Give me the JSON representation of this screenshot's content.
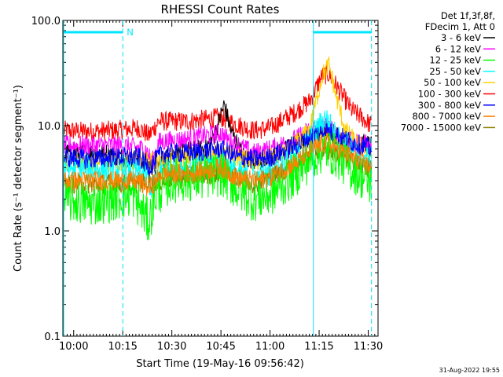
{
  "chart_data": {
    "type": "line",
    "title": "RHESSI Count Rates",
    "xlabel": "Start Time (19-May-16 09:56:42)",
    "ylabel": "Count Rate (s⁻¹ detector segment⁻¹)",
    "yscale": "log",
    "ylim": [
      0.1,
      100.0
    ],
    "xlim": [
      "09:56:42",
      "11:33:00"
    ],
    "grid": false,
    "y_ticks": [
      "0.1",
      "1.0",
      "10.0",
      "100.0"
    ],
    "x_ticks": [
      "10:00",
      "10:15",
      "10:30",
      "10:45",
      "11:00",
      "11:15",
      "11:30"
    ],
    "legend_header": [
      "Det 1f,3f,8f,",
      "FDecim 1, Att 0"
    ],
    "legend_position": "right",
    "footer": "31-Aug-2022 19:55",
    "annotation": "N",
    "night_intervals": [
      [
        "09:56:42",
        "10:15:00"
      ],
      [
        "11:13:00",
        "11:31:00"
      ]
    ],
    "saa_lines": [
      "10:15:00",
      "11:31:00"
    ],
    "series": [
      {
        "name": "3 - 6 keV",
        "color": "#000000",
        "points": [
          [
            "09:57",
            5.5
          ],
          [
            "10:10",
            5.5
          ],
          [
            "10:15",
            5.0
          ],
          [
            "10:20",
            4.8
          ],
          [
            "10:25",
            4.0
          ],
          [
            "10:30",
            5.5
          ],
          [
            "10:40",
            6.0
          ],
          [
            "10:43",
            8.0
          ],
          [
            "10:46",
            16.0
          ],
          [
            "10:48",
            9.0
          ],
          [
            "10:52",
            5.0
          ],
          [
            "10:58",
            4.5
          ],
          [
            "11:05",
            6.0
          ],
          [
            "11:10",
            7.5
          ],
          [
            "11:15",
            9.5
          ],
          [
            "11:18",
            9.0
          ],
          [
            "11:22",
            7.5
          ],
          [
            "11:26",
            7.0
          ],
          [
            "11:31",
            6.5
          ]
        ]
      },
      {
        "name": "6 - 12 keV",
        "color": "#ff00ff",
        "points": [
          [
            "09:57",
            6.5
          ],
          [
            "10:10",
            6.5
          ],
          [
            "10:15",
            6.5
          ],
          [
            "10:22",
            6.0
          ],
          [
            "10:24",
            4.5
          ],
          [
            "10:26",
            7.0
          ],
          [
            "10:35",
            7.5
          ],
          [
            "10:45",
            8.5
          ],
          [
            "10:48",
            7.0
          ],
          [
            "10:55",
            5.5
          ],
          [
            "11:00",
            6.0
          ],
          [
            "11:08",
            7.5
          ],
          [
            "11:13",
            9.5
          ],
          [
            "11:17",
            10.0
          ],
          [
            "11:20",
            8.5
          ],
          [
            "11:25",
            7.0
          ],
          [
            "11:31",
            6.5
          ]
        ]
      },
      {
        "name": "12 - 25 keV",
        "color": "#00ff00",
        "points": [
          [
            "09:57",
            2.0
          ],
          [
            "10:05",
            1.8
          ],
          [
            "10:12",
            2.0
          ],
          [
            "10:18",
            2.2
          ],
          [
            "10:23",
            1.2
          ],
          [
            "10:25",
            2.2
          ],
          [
            "10:30",
            3.0
          ],
          [
            "10:40",
            3.2
          ],
          [
            "10:45",
            3.5
          ],
          [
            "10:50",
            2.5
          ],
          [
            "10:55",
            2.0
          ],
          [
            "11:00",
            2.2
          ],
          [
            "11:08",
            3.5
          ],
          [
            "11:13",
            5.0
          ],
          [
            "11:17",
            6.0
          ],
          [
            "11:21",
            5.0
          ],
          [
            "11:25",
            3.8
          ],
          [
            "11:31",
            2.8
          ]
        ]
      },
      {
        "name": "25 - 50 keV",
        "color": "#00ffff",
        "points": [
          [
            "09:57",
            4.0
          ],
          [
            "10:10",
            3.8
          ],
          [
            "10:15",
            3.8
          ],
          [
            "10:22",
            3.5
          ],
          [
            "10:24",
            2.5
          ],
          [
            "10:27",
            4.0
          ],
          [
            "10:35",
            4.0
          ],
          [
            "10:45",
            4.5
          ],
          [
            "10:50",
            3.5
          ],
          [
            "10:55",
            3.2
          ],
          [
            "11:00",
            3.5
          ],
          [
            "11:08",
            5.0
          ],
          [
            "11:13",
            8.0
          ],
          [
            "11:17",
            12.0
          ],
          [
            "11:20",
            8.0
          ],
          [
            "11:25",
            6.0
          ],
          [
            "11:31",
            4.5
          ]
        ]
      },
      {
        "name": "50 - 100 keV",
        "color": "#ffd000",
        "points": [
          [
            "09:57",
            4.5
          ],
          [
            "10:10",
            4.5
          ],
          [
            "10:20",
            4.5
          ],
          [
            "10:35",
            5.0
          ],
          [
            "10:45",
            5.5
          ],
          [
            "10:55",
            4.5
          ],
          [
            "11:05",
            5.5
          ],
          [
            "11:12",
            9.0
          ],
          [
            "11:16",
            30.0
          ],
          [
            "11:18",
            38.0
          ],
          [
            "11:20",
            20.0
          ],
          [
            "11:23",
            9.0
          ],
          [
            "11:27",
            6.5
          ],
          [
            "11:31",
            5.5
          ]
        ]
      },
      {
        "name": "100 - 300 keV",
        "color": "#ff0000",
        "points": [
          [
            "09:57",
            9.0
          ],
          [
            "10:05",
            8.8
          ],
          [
            "10:12",
            9.0
          ],
          [
            "10:20",
            9.5
          ],
          [
            "10:23",
            8.0
          ],
          [
            "10:26",
            11.0
          ],
          [
            "10:35",
            11.0
          ],
          [
            "10:45",
            12.0
          ],
          [
            "10:49",
            10.5
          ],
          [
            "10:55",
            9.0
          ],
          [
            "11:00",
            9.5
          ],
          [
            "11:07",
            13.0
          ],
          [
            "11:12",
            17.0
          ],
          [
            "11:16",
            30.0
          ],
          [
            "11:18",
            31.0
          ],
          [
            "11:21",
            22.0
          ],
          [
            "11:25",
            14.0
          ],
          [
            "11:28",
            12.0
          ],
          [
            "11:31",
            10.0
          ]
        ]
      },
      {
        "name": "300 - 800 keV",
        "color": "#0000ff",
        "points": [
          [
            "09:57",
            5.0
          ],
          [
            "10:05",
            4.8
          ],
          [
            "10:12",
            5.0
          ],
          [
            "10:20",
            5.0
          ],
          [
            "10:23",
            4.0
          ],
          [
            "10:27",
            5.5
          ],
          [
            "10:35",
            5.5
          ],
          [
            "10:45",
            6.0
          ],
          [
            "10:50",
            5.0
          ],
          [
            "10:55",
            4.8
          ],
          [
            "11:00",
            5.0
          ],
          [
            "11:08",
            6.5
          ],
          [
            "11:13",
            8.0
          ],
          [
            "11:17",
            9.0
          ],
          [
            "11:21",
            8.0
          ],
          [
            "11:25",
            7.0
          ],
          [
            "11:31",
            6.0
          ]
        ]
      },
      {
        "name": "800 - 7000 keV",
        "color": "#ff8000",
        "points": [
          [
            "09:57",
            3.0
          ],
          [
            "10:05",
            3.0
          ],
          [
            "10:12",
            3.0
          ],
          [
            "10:20",
            3.0
          ],
          [
            "10:23",
            2.5
          ],
          [
            "10:27",
            3.5
          ],
          [
            "10:35",
            3.5
          ],
          [
            "10:45",
            4.0
          ],
          [
            "10:50",
            3.2
          ],
          [
            "10:55",
            3.0
          ],
          [
            "11:00",
            3.2
          ],
          [
            "11:08",
            4.5
          ],
          [
            "11:13",
            6.0
          ],
          [
            "11:17",
            7.0
          ],
          [
            "11:21",
            6.0
          ],
          [
            "11:25",
            5.0
          ],
          [
            "11:31",
            4.0
          ]
        ]
      },
      {
        "name": "7000 - 15000 keV",
        "color": "#8b8000",
        "points": [
          [
            "09:57",
            2.8
          ],
          [
            "10:10",
            2.8
          ],
          [
            "10:20",
            2.8
          ],
          [
            "10:35",
            3.2
          ],
          [
            "10:45",
            3.6
          ],
          [
            "10:55",
            2.8
          ],
          [
            "11:08",
            4.2
          ],
          [
            "11:15",
            6.0
          ],
          [
            "11:20",
            5.5
          ],
          [
            "11:31",
            3.8
          ]
        ]
      }
    ]
  }
}
